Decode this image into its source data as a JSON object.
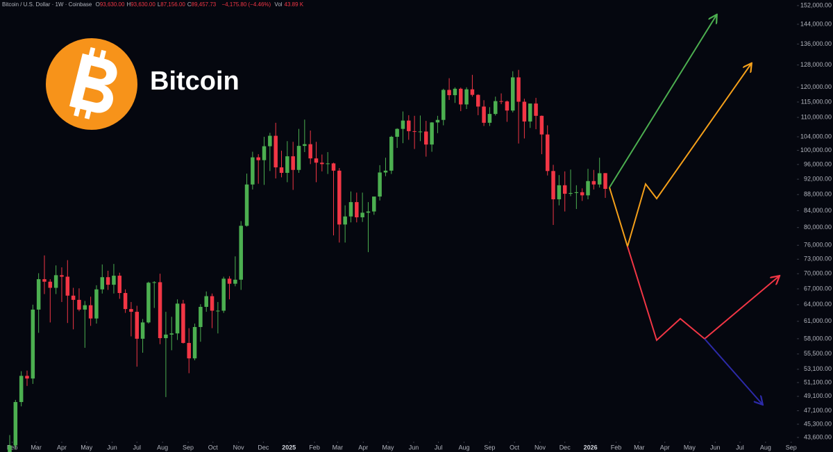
{
  "header": {
    "symbol": "Bitcoin / U.S. Dollar · 1W · Coinbase",
    "fields": [
      {
        "label": "O",
        "value": "93,630.00"
      },
      {
        "label": "H",
        "value": "93,630.00"
      },
      {
        "label": "L",
        "value": "87,156.00"
      },
      {
        "label": "C",
        "value": "89,457.73"
      }
    ],
    "change": "−4,175.80 (−4.46%)",
    "volume_label": "Vol",
    "volume": "43.89 K"
  },
  "chart_data": {
    "type": "candlestick",
    "title": "Bitcoin",
    "log_scale": true,
    "grid": false,
    "up_color": "#4caf50",
    "down_color": "#f23645",
    "x": [
      0,
      1,
      2,
      3,
      4,
      5,
      6,
      7,
      8,
      9,
      10,
      11,
      12,
      13,
      14,
      15,
      16,
      17,
      18,
      19,
      20,
      21,
      22,
      23,
      24,
      25,
      26,
      27,
      28,
      29,
      30,
      31,
      32,
      33,
      34,
      35,
      36,
      37,
      38,
      39,
      40,
      41,
      42,
      43,
      44,
      45,
      46,
      47,
      48,
      49,
      50,
      51,
      52,
      53,
      54,
      55,
      56,
      57,
      58,
      59,
      60,
      61,
      62,
      63,
      64,
      65,
      66,
      67,
      68,
      69,
      70,
      71,
      72,
      73,
      74,
      75,
      76,
      77,
      78,
      79,
      80,
      81,
      82,
      83,
      84,
      85,
      86,
      87,
      88,
      89,
      90,
      91,
      92,
      93,
      94,
      95,
      96,
      97,
      98,
      99,
      100,
      101,
      102,
      103
    ],
    "open": [
      41800,
      42600,
      48300,
      52100,
      51700,
      63100,
      68900,
      68400,
      67200,
      69700,
      69400,
      65700,
      64900,
      63100,
      63900,
      61500,
      66900,
      69300,
      67800,
      69600,
      66200,
      63200,
      62700,
      58000,
      60800,
      68200,
      68300,
      58100,
      58700,
      58900,
      64200,
      57300,
      54800,
      60000,
      63600,
      65600,
      62900,
      62900,
      69000,
      68000,
      68800,
      80400,
      90600,
      98000,
      97200,
      101200,
      104300,
      95200,
      93700,
      98300,
      94500,
      101300,
      101800,
      97700,
      96500,
      96100,
      96300,
      94300,
      80700,
      82600,
      86100,
      82400,
      83500,
      83800,
      87500,
      93800,
      94300,
      104000,
      106400,
      109000,
      105700,
      105600,
      105600,
      101700,
      108400,
      109200,
      119100,
      117300,
      119500,
      114200,
      119300,
      117400,
      113500,
      108300,
      111100,
      115300,
      115200,
      112200,
      123500,
      115100,
      108700,
      114500,
      110500,
      104700,
      94200,
      86800,
      90400,
      88200,
      88400,
      88600,
      87800,
      91500,
      90600,
      93630
    ],
    "high": [
      43900,
      48600,
      52800,
      52900,
      64000,
      70100,
      73800,
      68900,
      71700,
      71300,
      72800,
      67200,
      67100,
      64700,
      65500,
      67700,
      71900,
      70600,
      72000,
      70200,
      66900,
      64500,
      63800,
      61400,
      68400,
      68500,
      70000,
      62700,
      61800,
      65000,
      64900,
      59800,
      60600,
      64100,
      66500,
      66100,
      64500,
      69400,
      69500,
      73600,
      81500,
      93500,
      99600,
      98900,
      104000,
      105200,
      108300,
      99900,
      102700,
      102500,
      106400,
      109300,
      105900,
      102500,
      98800,
      99500,
      96500,
      95000,
      85300,
      88800,
      88500,
      88500,
      86100,
      86400,
      95800,
      97900,
      104300,
      106600,
      111900,
      110700,
      110500,
      110600,
      108900,
      108500,
      110500,
      119500,
      123200,
      120000,
      119900,
      120000,
      124400,
      117600,
      115600,
      113300,
      116800,
      117900,
      115500,
      125700,
      126200,
      116100,
      114000,
      116400,
      110600,
      107500,
      95900,
      93100,
      94100,
      94600,
      90400,
      89600,
      94800,
      94500,
      97900,
      93630
    ],
    "low": [
      41800,
      42200,
      47700,
      50600,
      50900,
      59000,
      66000,
      60800,
      66000,
      64500,
      60700,
      59600,
      62800,
      56500,
      60200,
      60600,
      66100,
      66800,
      66100,
      65100,
      62500,
      58400,
      53500,
      55700,
      60600,
      63400,
      57100,
      49000,
      56100,
      57800,
      57200,
      52500,
      54500,
      57500,
      62700,
      59800,
      58900,
      62500,
      65000,
      67500,
      66800,
      80200,
      89300,
      90800,
      90500,
      94200,
      92200,
      92500,
      91200,
      89200,
      93700,
      99500,
      96100,
      91200,
      94100,
      93400,
      78200,
      76600,
      76600,
      81200,
      81200,
      81300,
      74500,
      83000,
      86500,
      92800,
      93400,
      100700,
      102100,
      103100,
      100400,
      102700,
      98200,
      99600,
      105100,
      107500,
      115700,
      114700,
      112000,
      112700,
      116800,
      110700,
      107300,
      107300,
      110600,
      114300,
      108600,
      111600,
      102000,
      103500,
      106700,
      106300,
      98900,
      93000,
      80600,
      85300,
      83800,
      87600,
      84400,
      86400,
      86800,
      89300,
      89800,
      87156
    ],
    "close": [
      42600,
      48300,
      52100,
      51700,
      63100,
      68900,
      68400,
      67200,
      69700,
      69400,
      65700,
      64900,
      63100,
      63900,
      61500,
      66900,
      69300,
      67800,
      69600,
      66200,
      63200,
      62700,
      58000,
      60800,
      68200,
      68300,
      58100,
      58700,
      58900,
      64200,
      57300,
      54800,
      60000,
      63600,
      65600,
      62900,
      62900,
      69000,
      68000,
      68800,
      80400,
      90600,
      98000,
      97200,
      101200,
      104300,
      95200,
      93700,
      98300,
      94500,
      101300,
      101800,
      97700,
      96500,
      96100,
      96300,
      94300,
      80700,
      82600,
      86100,
      82400,
      83500,
      83800,
      87500,
      93800,
      94300,
      104000,
      106400,
      109000,
      105700,
      105600,
      105600,
      101700,
      108400,
      109200,
      119100,
      117300,
      119500,
      114200,
      119300,
      117400,
      113500,
      108300,
      111100,
      115300,
      115200,
      112200,
      123500,
      115100,
      108700,
      114500,
      110500,
      104700,
      94200,
      86800,
      90400,
      88200,
      88400,
      88600,
      87800,
      91500,
      90600,
      93600,
      89457.73
    ],
    "xlim": [
      -1.68,
      136.13
    ],
    "xticks": [
      {
        "value": 0.43,
        "label": "Feb"
      },
      {
        "value": 4.57,
        "label": "Mar"
      },
      {
        "value": 9,
        "label": "Apr"
      },
      {
        "value": 13.29,
        "label": "May"
      },
      {
        "value": 17.71,
        "label": "Jun"
      },
      {
        "value": 22,
        "label": "Jul"
      },
      {
        "value": 26.43,
        "label": "Aug"
      },
      {
        "value": 30.86,
        "label": "Sep"
      },
      {
        "value": 35.14,
        "label": "Oct"
      },
      {
        "value": 39.57,
        "label": "Nov"
      },
      {
        "value": 43.86,
        "label": "Dec"
      },
      {
        "value": 48.29,
        "label": "2025"
      },
      {
        "value": 52.71,
        "label": "Feb"
      },
      {
        "value": 56.71,
        "label": "Mar"
      },
      {
        "value": 61.14,
        "label": "Apr"
      },
      {
        "value": 65.43,
        "label": "May"
      },
      {
        "value": 69.86,
        "label": "Jun"
      },
      {
        "value": 74.14,
        "label": "Jul"
      },
      {
        "value": 78.57,
        "label": "Aug"
      },
      {
        "value": 83,
        "label": "Sep"
      },
      {
        "value": 87.29,
        "label": "Oct"
      },
      {
        "value": 91.71,
        "label": "Nov"
      },
      {
        "value": 96,
        "label": "Dec"
      },
      {
        "value": 100.43,
        "label": "2026"
      },
      {
        "value": 104.86,
        "label": "Feb"
      },
      {
        "value": 108.86,
        "label": "Mar"
      },
      {
        "value": 113.29,
        "label": "Apr"
      },
      {
        "value": 117.57,
        "label": "May"
      },
      {
        "value": 122,
        "label": "Jun"
      },
      {
        "value": 126.29,
        "label": "Jul"
      },
      {
        "value": 130.71,
        "label": "Aug"
      },
      {
        "value": 135.14,
        "label": "Sep"
      }
    ],
    "ylim": [
      43080,
      154460
    ],
    "yticks": [
      {
        "value": 152000,
        "label": "152,000.00"
      },
      {
        "value": 144000,
        "label": "144,000.00"
      },
      {
        "value": 136000,
        "label": "136,000.00"
      },
      {
        "value": 128000,
        "label": "128,000.00"
      },
      {
        "value": 120000,
        "label": "120,000.00"
      },
      {
        "value": 115000,
        "label": "115,000.00"
      },
      {
        "value": 110000,
        "label": "110,000.00"
      },
      {
        "value": 104000,
        "label": "104,000.00"
      },
      {
        "value": 100000,
        "label": "100,000.00"
      },
      {
        "value": 96000,
        "label": "96,000.00"
      },
      {
        "value": 92000,
        "label": "92,000.00"
      },
      {
        "value": 88000,
        "label": "88,000.00"
      },
      {
        "value": 84000,
        "label": "84,000.00"
      },
      {
        "value": 80000,
        "label": "80,000.00"
      },
      {
        "value": 76000,
        "label": "76,000.00"
      },
      {
        "value": 73000,
        "label": "73,000.00"
      },
      {
        "value": 70000,
        "label": "70,000.00"
      },
      {
        "value": 67000,
        "label": "67,000.00"
      },
      {
        "value": 64000,
        "label": "64,000.00"
      },
      {
        "value": 61000,
        "label": "61,000.00"
      },
      {
        "value": 58000,
        "label": "58,000.00"
      },
      {
        "value": 55500,
        "label": "55,500.00"
      },
      {
        "value": 53100,
        "label": "53,100.00"
      },
      {
        "value": 51100,
        "label": "51,100.00"
      },
      {
        "value": 49100,
        "label": "49,100.00"
      },
      {
        "value": 47100,
        "label": "47,100.00"
      },
      {
        "value": 45300,
        "label": "45,300.00"
      },
      {
        "value": 43600,
        "label": "43,600.00"
      }
    ]
  }
}
